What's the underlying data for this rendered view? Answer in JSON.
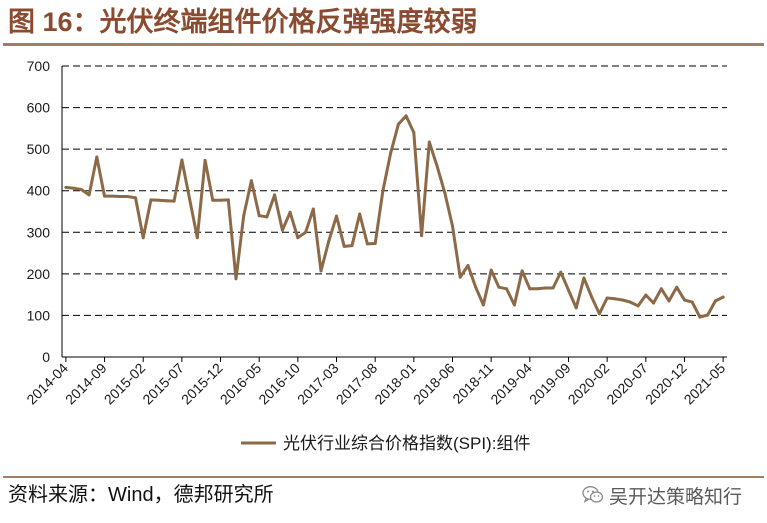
{
  "figure": {
    "source": "资料来源：Wind，德邦研究所",
    "watermark": "吴开达策略知行",
    "watermark_icon": "wechat-icon"
  },
  "colors": {
    "title": "#8a4b30",
    "rule": "#a08060",
    "series": "#8d6a47",
    "watermark": "#5a5a5a"
  },
  "chart_data": {
    "type": "line",
    "title": "图 16：光伏终端组件价格反弹强度较弱",
    "x": [
      "2014-04",
      "2014-05",
      "2014-06",
      "2014-07",
      "2014-08",
      "2014-09",
      "2014-10",
      "2014-11",
      "2014-12",
      "2015-01",
      "2015-02",
      "2015-03",
      "2015-04",
      "2015-05",
      "2015-06",
      "2015-07",
      "2015-08",
      "2015-09",
      "2015-10",
      "2015-11",
      "2015-12",
      "2016-01",
      "2016-02",
      "2016-03",
      "2016-04",
      "2016-05",
      "2016-06",
      "2016-07",
      "2016-08",
      "2016-09",
      "2016-10",
      "2016-11",
      "2016-12",
      "2017-01",
      "2017-02",
      "2017-03",
      "2017-04",
      "2017-05",
      "2017-06",
      "2017-07",
      "2017-08",
      "2017-09",
      "2017-10",
      "2017-11",
      "2017-12",
      "2018-01",
      "2018-02",
      "2018-03",
      "2018-04",
      "2018-05",
      "2018-06",
      "2018-07",
      "2018-08",
      "2018-09",
      "2018-10",
      "2018-11",
      "2018-12",
      "2019-01",
      "2019-02",
      "2019-03",
      "2019-04",
      "2019-05",
      "2019-06",
      "2019-07",
      "2019-08",
      "2019-09",
      "2019-10",
      "2019-11",
      "2019-12",
      "2020-01",
      "2020-02",
      "2020-03",
      "2020-04",
      "2020-05",
      "2020-06",
      "2020-07",
      "2020-08",
      "2020-09",
      "2020-10",
      "2020-11",
      "2020-12",
      "2021-01",
      "2021-02",
      "2021-03",
      "2021-04",
      "2021-05"
    ],
    "series": [
      {
        "name": "光伏行业综合价格指数(SPI):组件",
        "values": [
          408,
          406,
          403,
          390,
          481,
          387,
          387,
          386,
          386,
          383,
          287,
          378,
          377,
          376,
          375,
          474,
          380,
          287,
          473,
          377,
          377,
          378,
          188,
          340,
          424,
          340,
          337,
          390,
          305,
          348,
          287,
          300,
          356,
          207,
          279,
          339,
          266,
          268,
          344,
          272,
          273,
          400,
          490,
          560,
          580,
          540,
          292,
          517,
          460,
          395,
          315,
          192,
          220,
          168,
          125,
          209,
          168,
          164,
          125,
          207,
          164,
          164,
          166,
          166,
          204,
          161,
          118,
          190,
          144,
          104,
          142,
          140,
          137,
          132,
          123,
          149,
          130,
          164,
          135,
          168,
          137,
          132,
          96,
          101,
          135,
          144
        ]
      }
    ],
    "ylim": [
      0,
      700
    ],
    "yticks": [
      0,
      100,
      200,
      300,
      400,
      500,
      600,
      700
    ],
    "grid": true,
    "legend": "bottom"
  }
}
